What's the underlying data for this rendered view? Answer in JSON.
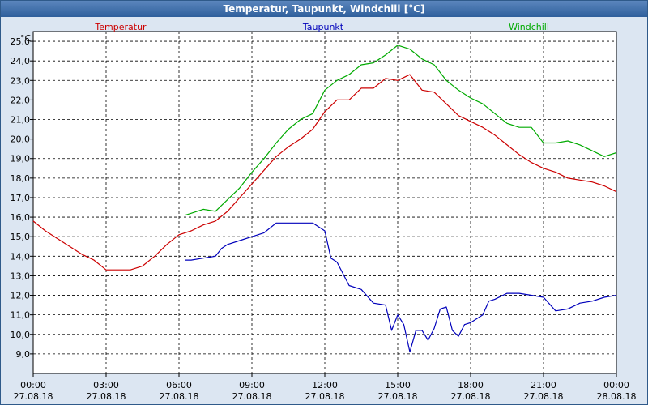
{
  "window": {
    "title": "Temperatur, Taupunkt, Windchill [°C]"
  },
  "chart_data": {
    "type": "line",
    "title": "Temperatur, Taupunkt, Windchill [°C]",
    "ylabel": "°C",
    "ylim": [
      8.0,
      25.5
    ],
    "xlim": [
      "27.08.18 00:00",
      "28.08.18 00:00"
    ],
    "grid": true,
    "legend_position": "top",
    "y_ticks": [
      9.0,
      10.0,
      11.0,
      12.0,
      13.0,
      14.0,
      15.0,
      16.0,
      17.0,
      18.0,
      19.0,
      20.0,
      21.0,
      22.0,
      23.0,
      24.0,
      25.0
    ],
    "x_ticks": [
      {
        "time": "00:00",
        "date": "27.08.18"
      },
      {
        "time": "03:00",
        "date": "27.08.18"
      },
      {
        "time": "06:00",
        "date": "27.08.18"
      },
      {
        "time": "09:00",
        "date": "27.08.18"
      },
      {
        "time": "12:00",
        "date": "27.08.18"
      },
      {
        "time": "15:00",
        "date": "27.08.18"
      },
      {
        "time": "18:00",
        "date": "27.08.18"
      },
      {
        "time": "21:00",
        "date": "27.08.18"
      },
      {
        "time": "00:00",
        "date": "28.08.18"
      }
    ],
    "series": [
      {
        "name": "Temperatur",
        "color": "#cc0000",
        "points": [
          [
            "00:00",
            15.8
          ],
          [
            "00:30",
            15.3
          ],
          [
            "01:00",
            14.9
          ],
          [
            "01:30",
            14.5
          ],
          [
            "02:00",
            14.1
          ],
          [
            "02:30",
            13.8
          ],
          [
            "03:00",
            13.3
          ],
          [
            "03:30",
            13.3
          ],
          [
            "04:00",
            13.3
          ],
          [
            "04:30",
            13.5
          ],
          [
            "05:00",
            14.0
          ],
          [
            "05:30",
            14.6
          ],
          [
            "06:00",
            15.1
          ],
          [
            "06:30",
            15.3
          ],
          [
            "07:00",
            15.6
          ],
          [
            "07:30",
            15.8
          ],
          [
            "08:00",
            16.3
          ],
          [
            "08:30",
            17.0
          ],
          [
            "09:00",
            17.7
          ],
          [
            "09:30",
            18.4
          ],
          [
            "10:00",
            19.1
          ],
          [
            "10:30",
            19.6
          ],
          [
            "11:00",
            20.0
          ],
          [
            "11:30",
            20.5
          ],
          [
            "12:00",
            21.4
          ],
          [
            "12:30",
            22.0
          ],
          [
            "13:00",
            22.0
          ],
          [
            "13:30",
            22.6
          ],
          [
            "14:00",
            22.6
          ],
          [
            "14:30",
            23.1
          ],
          [
            "15:00",
            23.0
          ],
          [
            "15:30",
            23.3
          ],
          [
            "16:00",
            22.5
          ],
          [
            "16:30",
            22.4
          ],
          [
            "17:00",
            21.8
          ],
          [
            "17:30",
            21.2
          ],
          [
            "18:00",
            20.9
          ],
          [
            "18:30",
            20.6
          ],
          [
            "19:00",
            20.2
          ],
          [
            "19:30",
            19.7
          ],
          [
            "20:00",
            19.2
          ],
          [
            "20:30",
            18.8
          ],
          [
            "21:00",
            18.5
          ],
          [
            "21:30",
            18.3
          ],
          [
            "22:00",
            18.0
          ],
          [
            "22:30",
            17.9
          ],
          [
            "23:00",
            17.8
          ],
          [
            "23:30",
            17.6
          ],
          [
            "24:00",
            17.3
          ]
        ]
      },
      {
        "name": "Taupunkt",
        "color": "#0000bb",
        "points": [
          [
            "06:15",
            13.8
          ],
          [
            "06:30",
            13.8
          ],
          [
            "07:00",
            13.9
          ],
          [
            "07:30",
            14.0
          ],
          [
            "07:45",
            14.4
          ],
          [
            "08:00",
            14.6
          ],
          [
            "08:30",
            14.8
          ],
          [
            "09:00",
            15.0
          ],
          [
            "09:30",
            15.2
          ],
          [
            "10:00",
            15.7
          ],
          [
            "10:30",
            15.7
          ],
          [
            "11:00",
            15.7
          ],
          [
            "11:30",
            15.7
          ],
          [
            "12:00",
            15.3
          ],
          [
            "12:15",
            13.9
          ],
          [
            "12:30",
            13.7
          ],
          [
            "13:00",
            12.5
          ],
          [
            "13:30",
            12.3
          ],
          [
            "14:00",
            11.6
          ],
          [
            "14:30",
            11.5
          ],
          [
            "14:45",
            10.2
          ],
          [
            "15:00",
            11.0
          ],
          [
            "15:15",
            10.5
          ],
          [
            "15:30",
            9.1
          ],
          [
            "15:45",
            10.2
          ],
          [
            "16:00",
            10.2
          ],
          [
            "16:15",
            9.7
          ],
          [
            "16:30",
            10.3
          ],
          [
            "16:45",
            11.3
          ],
          [
            "17:00",
            11.4
          ],
          [
            "17:15",
            10.2
          ],
          [
            "17:30",
            9.9
          ],
          [
            "17:45",
            10.5
          ],
          [
            "18:00",
            10.6
          ],
          [
            "18:30",
            11.0
          ],
          [
            "18:45",
            11.7
          ],
          [
            "19:00",
            11.8
          ],
          [
            "19:30",
            12.1
          ],
          [
            "20:00",
            12.1
          ],
          [
            "20:30",
            12.0
          ],
          [
            "21:00",
            11.9
          ],
          [
            "21:30",
            11.2
          ],
          [
            "22:00",
            11.3
          ],
          [
            "22:30",
            11.6
          ],
          [
            "23:00",
            11.7
          ],
          [
            "23:30",
            11.9
          ],
          [
            "24:00",
            12.0
          ]
        ]
      },
      {
        "name": "Windchill",
        "color": "#00aa00",
        "points": [
          [
            "06:15",
            16.1
          ],
          [
            "06:30",
            16.2
          ],
          [
            "07:00",
            16.4
          ],
          [
            "07:30",
            16.3
          ],
          [
            "08:00",
            16.9
          ],
          [
            "08:30",
            17.5
          ],
          [
            "09:00",
            18.3
          ],
          [
            "09:30",
            19.0
          ],
          [
            "10:00",
            19.8
          ],
          [
            "10:30",
            20.5
          ],
          [
            "11:00",
            21.0
          ],
          [
            "11:30",
            21.3
          ],
          [
            "12:00",
            22.5
          ],
          [
            "12:30",
            23.0
          ],
          [
            "13:00",
            23.3
          ],
          [
            "13:30",
            23.8
          ],
          [
            "14:00",
            23.9
          ],
          [
            "14:30",
            24.3
          ],
          [
            "15:00",
            24.8
          ],
          [
            "15:30",
            24.6
          ],
          [
            "16:00",
            24.1
          ],
          [
            "16:30",
            23.8
          ],
          [
            "17:00",
            23.0
          ],
          [
            "17:30",
            22.5
          ],
          [
            "18:00",
            22.1
          ],
          [
            "18:30",
            21.8
          ],
          [
            "19:00",
            21.3
          ],
          [
            "19:30",
            20.8
          ],
          [
            "20:00",
            20.6
          ],
          [
            "20:30",
            20.6
          ],
          [
            "21:00",
            19.8
          ],
          [
            "21:30",
            19.8
          ],
          [
            "22:00",
            19.9
          ],
          [
            "22:30",
            19.7
          ],
          [
            "23:00",
            19.4
          ],
          [
            "23:30",
            19.1
          ],
          [
            "24:00",
            19.3
          ]
        ]
      }
    ]
  }
}
